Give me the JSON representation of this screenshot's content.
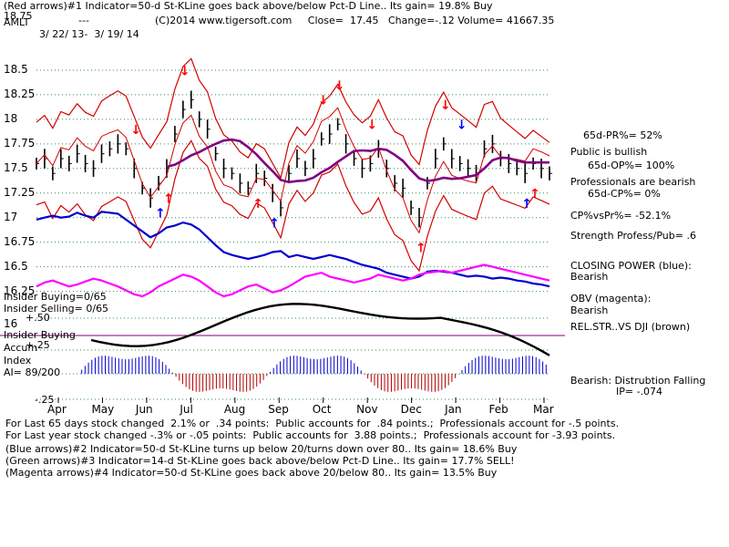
{
  "header": {
    "line1": "(Red arrows)#1 Indicator=50-d St-KLine goes back above/below Pct-D Line.. Its gain= 19.8% Buy",
    "ticker": "AMLT",
    "price_label": "18.75",
    "dashes": "---",
    "info": "(C)2014 www.tigersoft.com     Close=  17.45   Change=-.12 Volume= 41667.35",
    "date_range": "3/ 22/ 13-  3/ 19/ 14"
  },
  "right_panel": {
    "pr": "65d-PR%= 52%",
    "public": "Public is bullish",
    "op": "65d-OP%= 100%",
    "professionals": "Professionals are bearish",
    "cp": "65d-CP%= 0%",
    "cpvspr": "CP%vsPr%= -52.1%",
    "strength": "Strength Profess/Pub= .6",
    "closing_power_label": "CLOSING POWER (blue):",
    "closing_power_value": "Bearish",
    "obv_label": "OBV (magenta):",
    "obv_value": "Bearish",
    "relstr": "REL.STR..VS DJI (brown)",
    "bearish_dist": "Bearish: Distrubtion Falling",
    "ip": "IP= -.074"
  },
  "left_panel": {
    "insider_buying": "Insider Buying=0/65",
    "insider_selling": "Insider Selling= 0/65",
    "p50": "+.50",
    "insider_buying2": "Insider Buying",
    "accum": "Accum",
    "p25": "+.25",
    "index": "Index",
    "ai": "AI= 89/200",
    "m25": "-.25",
    "num16": "16"
  },
  "footer": [
    "For Last 65 days stock changed  2.1% or  .34 points:  Public accounts for  .84 points.;  Professionals account for -.5 points.",
    "For Last year stock changed -.3% or -.05 points:  Public accounts for  3.88 points.;  Professionals account for -3.93 points.",
    "(Blue arrows)#2 Indicator=50-d St-KLine turns up below 20/turns down over 80.. Its gain= 18.6% Buy",
    "(Green arrows)#3 Indicator=14-d St-KLine goes back above/below Pct-D Line.. Its gain= 17.7% SELL!",
    "(Magenta arrows)#4 Indicator=50-d St-KLine goes back above 20/below 80.. Its gain= 13.5% Buy"
  ],
  "colors": {
    "bollinger": "#d40000",
    "ma": "#800080",
    "closing_power": "#0000cc",
    "obv": "#ff00ff",
    "relstr": "#000000",
    "accum_pos": "#0000cc",
    "accum_neg": "#b00000",
    "grid": "#2e8b57",
    "insider_line": "#800080",
    "arrow_red": "#ff0000",
    "arrow_blue": "#0000ff"
  },
  "chart_data": {
    "type": "line",
    "y_ticks": [
      "18.5",
      "18.25",
      "18",
      "17.75",
      "17.5",
      "17.25",
      "17",
      "16.75",
      "16.5",
      "16.25"
    ],
    "x_ticks": [
      "Apr",
      "May",
      "Jun",
      "Jul",
      "Aug",
      "Sep",
      "Oct",
      "Nov",
      "Dec",
      "Jan",
      "Feb",
      "Mar"
    ],
    "ylim": [
      16.2,
      18.75
    ],
    "grid": true,
    "series": [
      {
        "values": [
          17.55,
          17.6,
          17.45,
          17.6,
          17.55,
          17.65,
          17.55,
          17.5,
          17.65,
          17.7,
          17.75,
          17.7,
          17.5,
          17.3,
          17.2,
          17.35,
          17.5,
          17.85,
          18.1,
          18.2,
          18.0,
          17.9,
          17.65,
          17.5,
          17.45,
          17.35,
          17.3,
          17.45,
          17.4,
          17.25,
          17.1,
          17.45,
          17.6,
          17.5,
          17.6,
          17.8,
          17.85,
          17.95,
          17.75,
          17.6,
          17.5,
          17.55,
          17.7,
          17.5,
          17.35,
          17.3,
          17.1,
          17.0,
          17.35,
          17.6,
          17.75,
          17.6,
          17.55,
          17.5,
          17.45,
          17.7,
          17.75,
          17.6,
          17.55,
          17.5,
          17.45,
          17.55,
          17.5,
          17.45
        ]
      },
      {
        "values": [
          16.98,
          17.0,
          17.02,
          17.0,
          17.01,
          17.05,
          17.02,
          17.0,
          17.06,
          17.05,
          17.04,
          16.98,
          16.92,
          16.86,
          16.8,
          16.84,
          16.9,
          16.92,
          16.95,
          16.93,
          16.88,
          16.8,
          16.72,
          16.65,
          16.62,
          16.6,
          16.58,
          16.6,
          16.62,
          16.65,
          16.66,
          16.6,
          16.62,
          16.6,
          16.58,
          16.6,
          16.62,
          16.6,
          16.58,
          16.55,
          16.52,
          16.5,
          16.48,
          16.44,
          16.42,
          16.4,
          16.38,
          16.4,
          16.45,
          16.46,
          16.45,
          16.44,
          16.42,
          16.4,
          16.41,
          16.4,
          16.38,
          16.39,
          16.38,
          16.36,
          16.35,
          16.33,
          16.32,
          16.3
        ]
      },
      {
        "values": [
          16.3,
          16.34,
          16.36,
          16.33,
          16.3,
          16.32,
          16.35,
          16.38,
          16.36,
          16.33,
          16.3,
          16.26,
          16.22,
          16.2,
          16.24,
          16.3,
          16.34,
          16.38,
          16.42,
          16.4,
          16.36,
          16.3,
          16.24,
          16.2,
          16.22,
          16.26,
          16.3,
          16.32,
          16.28,
          16.24,
          16.26,
          16.3,
          16.35,
          16.4,
          16.42,
          16.44,
          16.4,
          16.38,
          16.36,
          16.34,
          16.36,
          16.38,
          16.42,
          16.4,
          16.38,
          16.36,
          16.38,
          16.42,
          16.44,
          16.45,
          16.46,
          16.44,
          16.46,
          16.48,
          16.5,
          16.52,
          16.5,
          16.48,
          16.46,
          16.44,
          16.42,
          16.4,
          16.38,
          16.36
        ]
      }
    ]
  }
}
